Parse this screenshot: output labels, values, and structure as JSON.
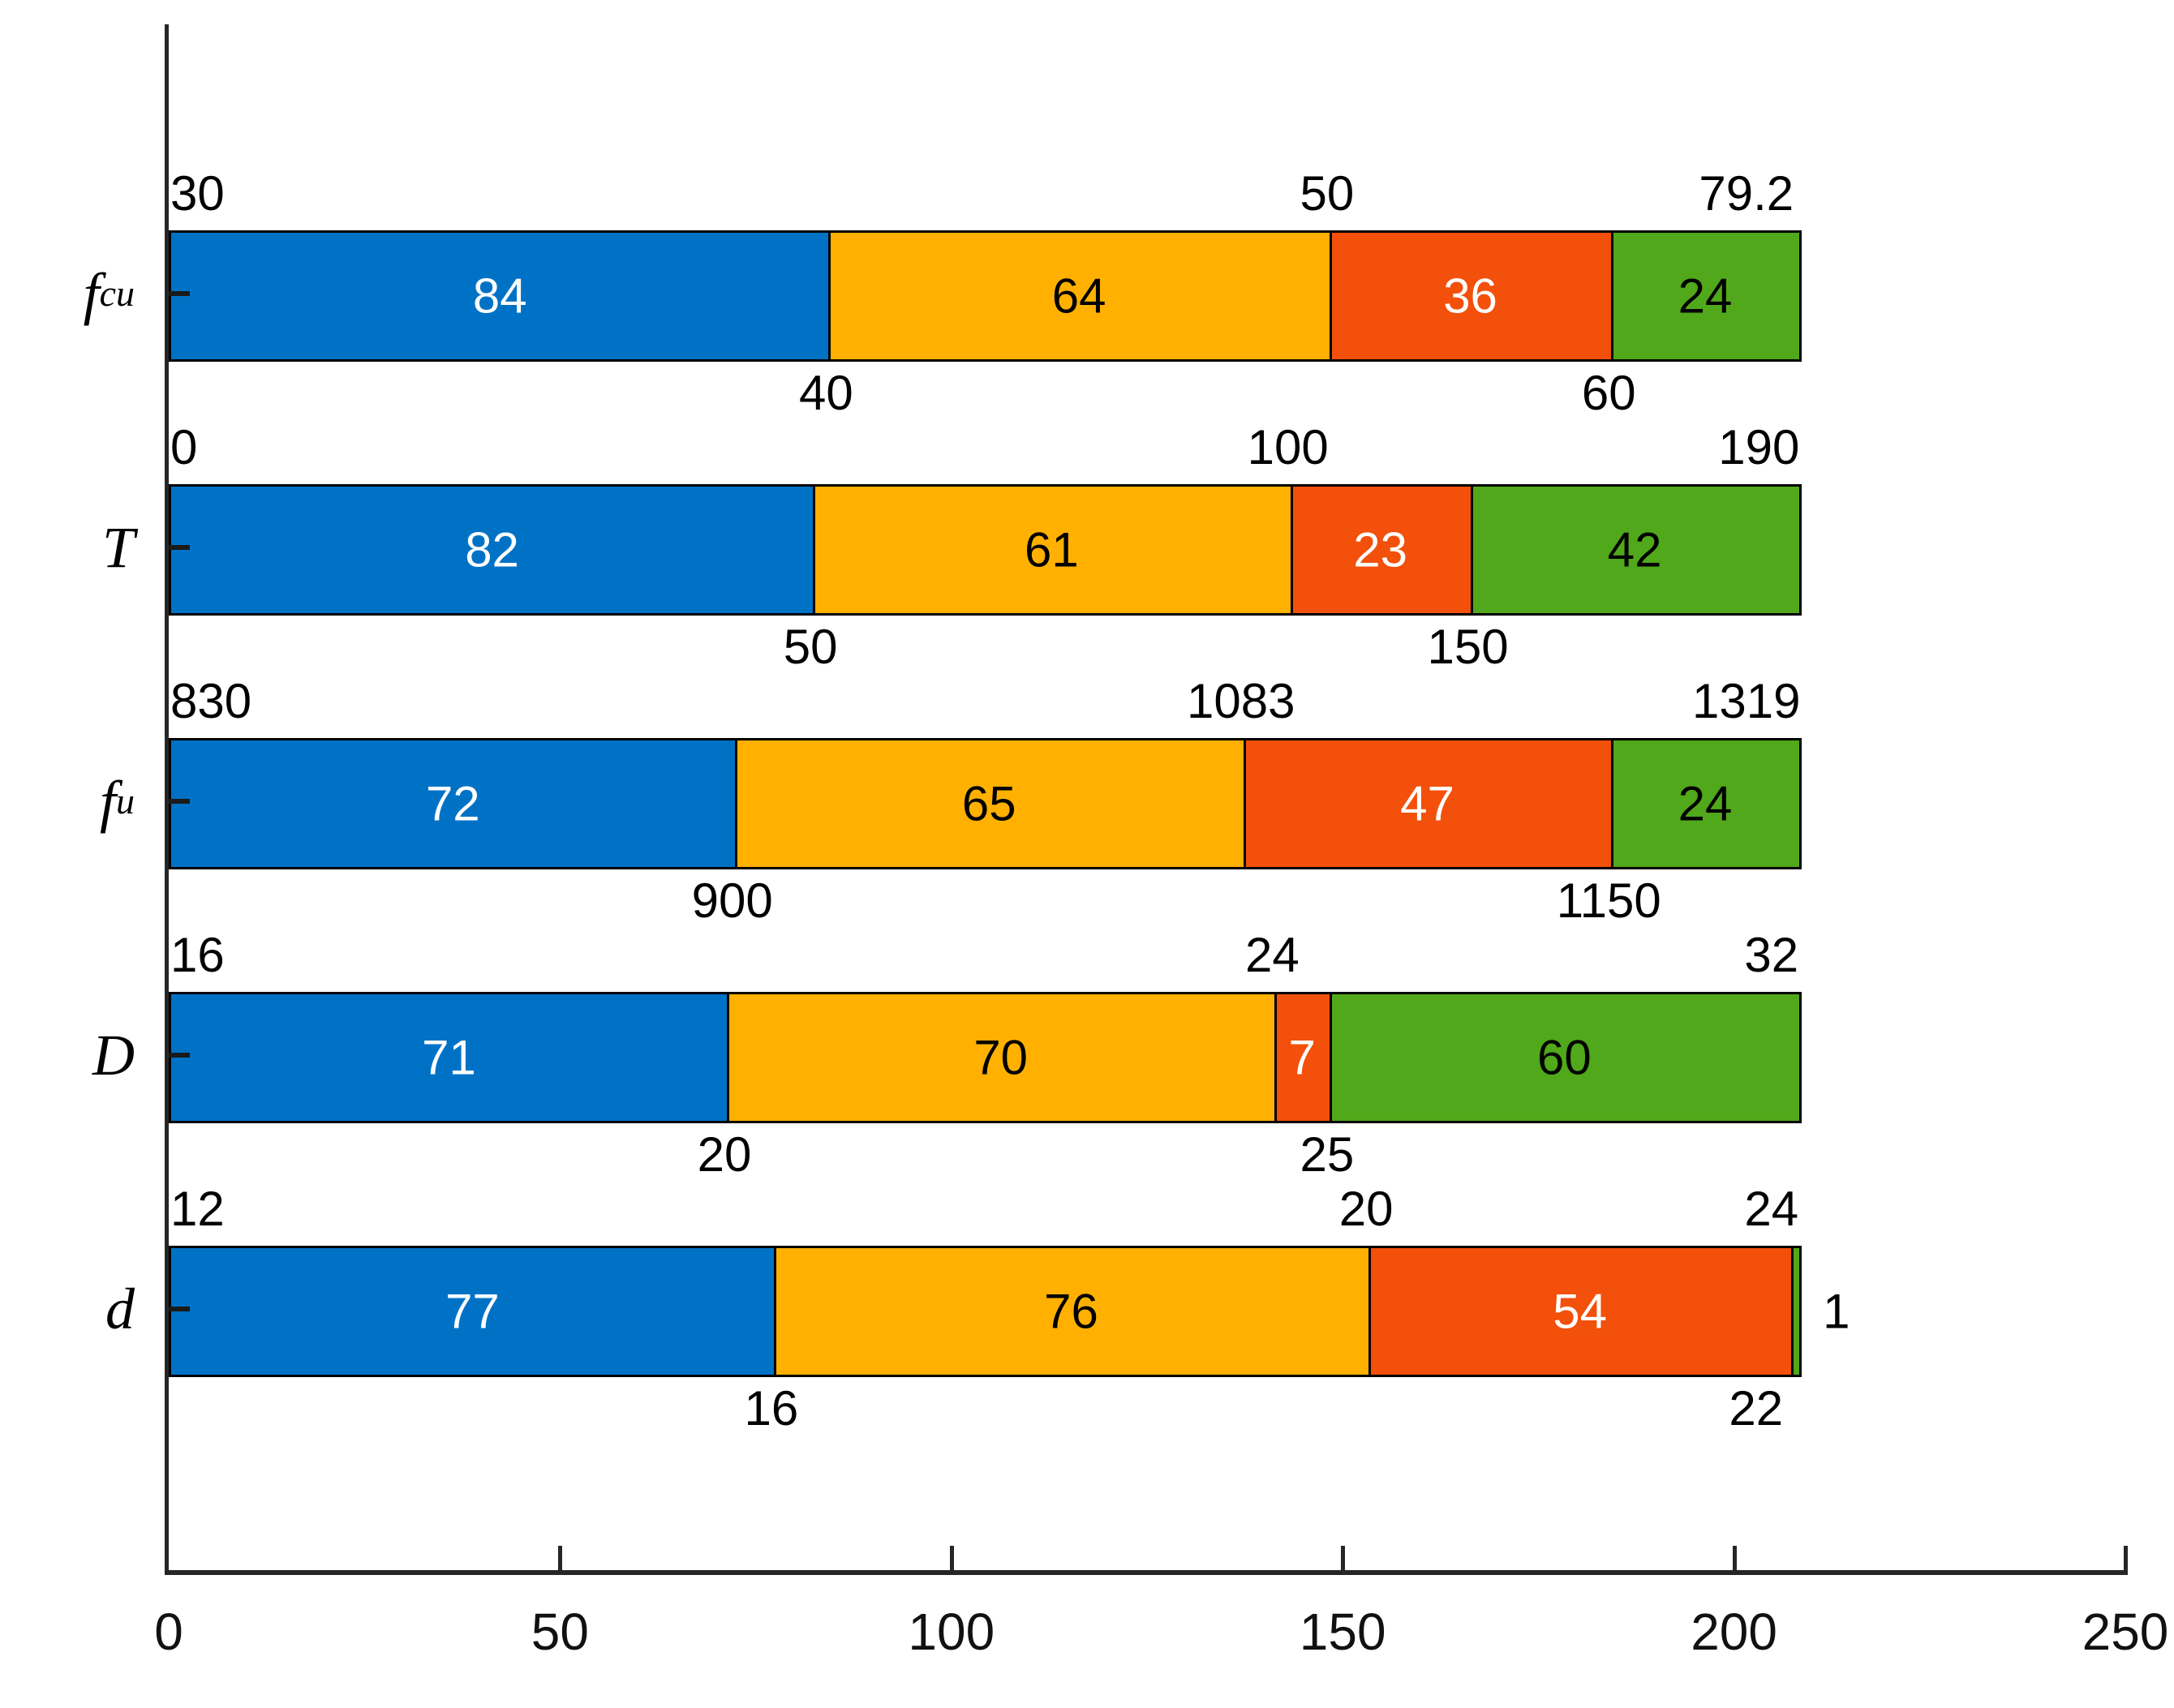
{
  "figure": {
    "background": "#ffffff",
    "axis_color": "#262626",
    "bar_border_color": "#000000"
  },
  "chart_data": {
    "type": "bar",
    "orientation": "horizontal",
    "stacked": true,
    "grid": false,
    "legend": "none",
    "x_axis": {
      "min": 0,
      "max": 250,
      "tick_labels": [
        "0",
        "50",
        "100",
        "150",
        "200",
        "250"
      ],
      "ticks": [
        0,
        50,
        100,
        150,
        200,
        250
      ]
    },
    "segment_colors": [
      "#0072C6",
      "#FFB000",
      "#F2500B",
      "#50A81A"
    ],
    "segment_text_colors": [
      "#ffffff",
      "#000000",
      "#ffffff",
      "#000000"
    ],
    "rows": [
      {
        "label_main": "f",
        "label_sub": "cu",
        "segments": [
          84,
          64,
          36,
          24
        ],
        "boundary_labels": [
          "30",
          "40",
          "50",
          "60",
          "79.2"
        ]
      },
      {
        "label_main": "T",
        "label_sub": "",
        "segments": [
          82,
          61,
          23,
          42
        ],
        "boundary_labels": [
          "0",
          "50",
          "100",
          "150",
          "190"
        ]
      },
      {
        "label_main": "f",
        "label_sub": "u",
        "segments": [
          72,
          65,
          47,
          24
        ],
        "boundary_labels": [
          "830",
          "900",
          "1083",
          "1150",
          "1319"
        ]
      },
      {
        "label_main": "D",
        "label_sub": "",
        "segments": [
          71,
          70,
          7,
          60
        ],
        "boundary_labels": [
          "16",
          "20",
          "24",
          "25",
          "32"
        ]
      },
      {
        "label_main": "d",
        "label_sub": "",
        "segments": [
          77,
          76,
          54,
          1
        ],
        "boundary_labels": [
          "12",
          "16",
          "20",
          "22",
          "24"
        ]
      }
    ]
  }
}
